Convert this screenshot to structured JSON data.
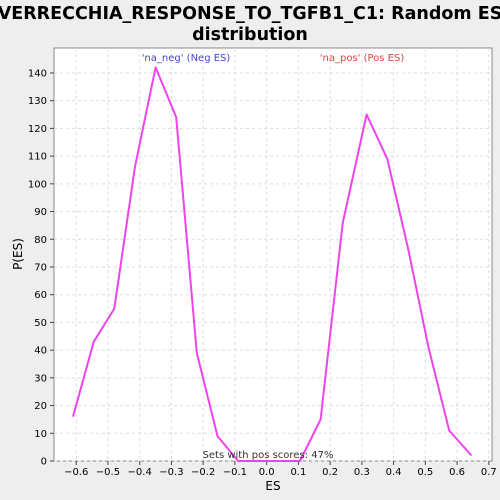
{
  "chart_data": {
    "type": "line",
    "title_line1": "VERRECCHIA_RESPONSE_TO_TGFB1_C1: Random ES",
    "title_line2": "distribution",
    "xlabel": "ES",
    "ylabel": "P(ES)",
    "xlim": [
      -0.67,
      0.71
    ],
    "ylim": [
      0,
      149
    ],
    "xticks": [
      -0.6,
      -0.5,
      -0.4,
      -0.3,
      -0.2,
      -0.1,
      0.0,
      0.1,
      0.2,
      0.3,
      0.4,
      0.5,
      0.6,
      0.7
    ],
    "xtick_labels": [
      "−0.6",
      "−0.5",
      "−0.4",
      "−0.3",
      "−0.2",
      "−0.1",
      "0.0",
      "0.1",
      "0.2",
      "0.3",
      "0.4",
      "0.5",
      "0.6",
      "0.7"
    ],
    "yticks": [
      0,
      10,
      20,
      30,
      40,
      50,
      60,
      70,
      80,
      90,
      100,
      110,
      120,
      130,
      140
    ],
    "grid": true,
    "line_color": "#ee44ee",
    "series": [
      {
        "x": [
          -0.61,
          -0.545,
          -0.48,
          -0.415,
          -0.35,
          -0.285,
          -0.22,
          -0.155,
          -0.09,
          -0.025,
          0.04,
          0.105,
          0.17,
          0.24,
          0.315,
          0.38,
          0.445,
          0.51,
          0.575,
          0.645
        ],
        "values": [
          16,
          43,
          55,
          106,
          142,
          124,
          39,
          9,
          0,
          0,
          0,
          0,
          15,
          86,
          125,
          109,
          77,
          41,
          11,
          2
        ]
      }
    ],
    "annotations": {
      "neg_label": "'na_neg' (Neg ES)",
      "neg_color": "#4444cc",
      "pos_label": "'na_pos' (Pos ES)",
      "pos_color": "#dd4444",
      "footnote": "Sets with pos scores: 47%"
    }
  }
}
